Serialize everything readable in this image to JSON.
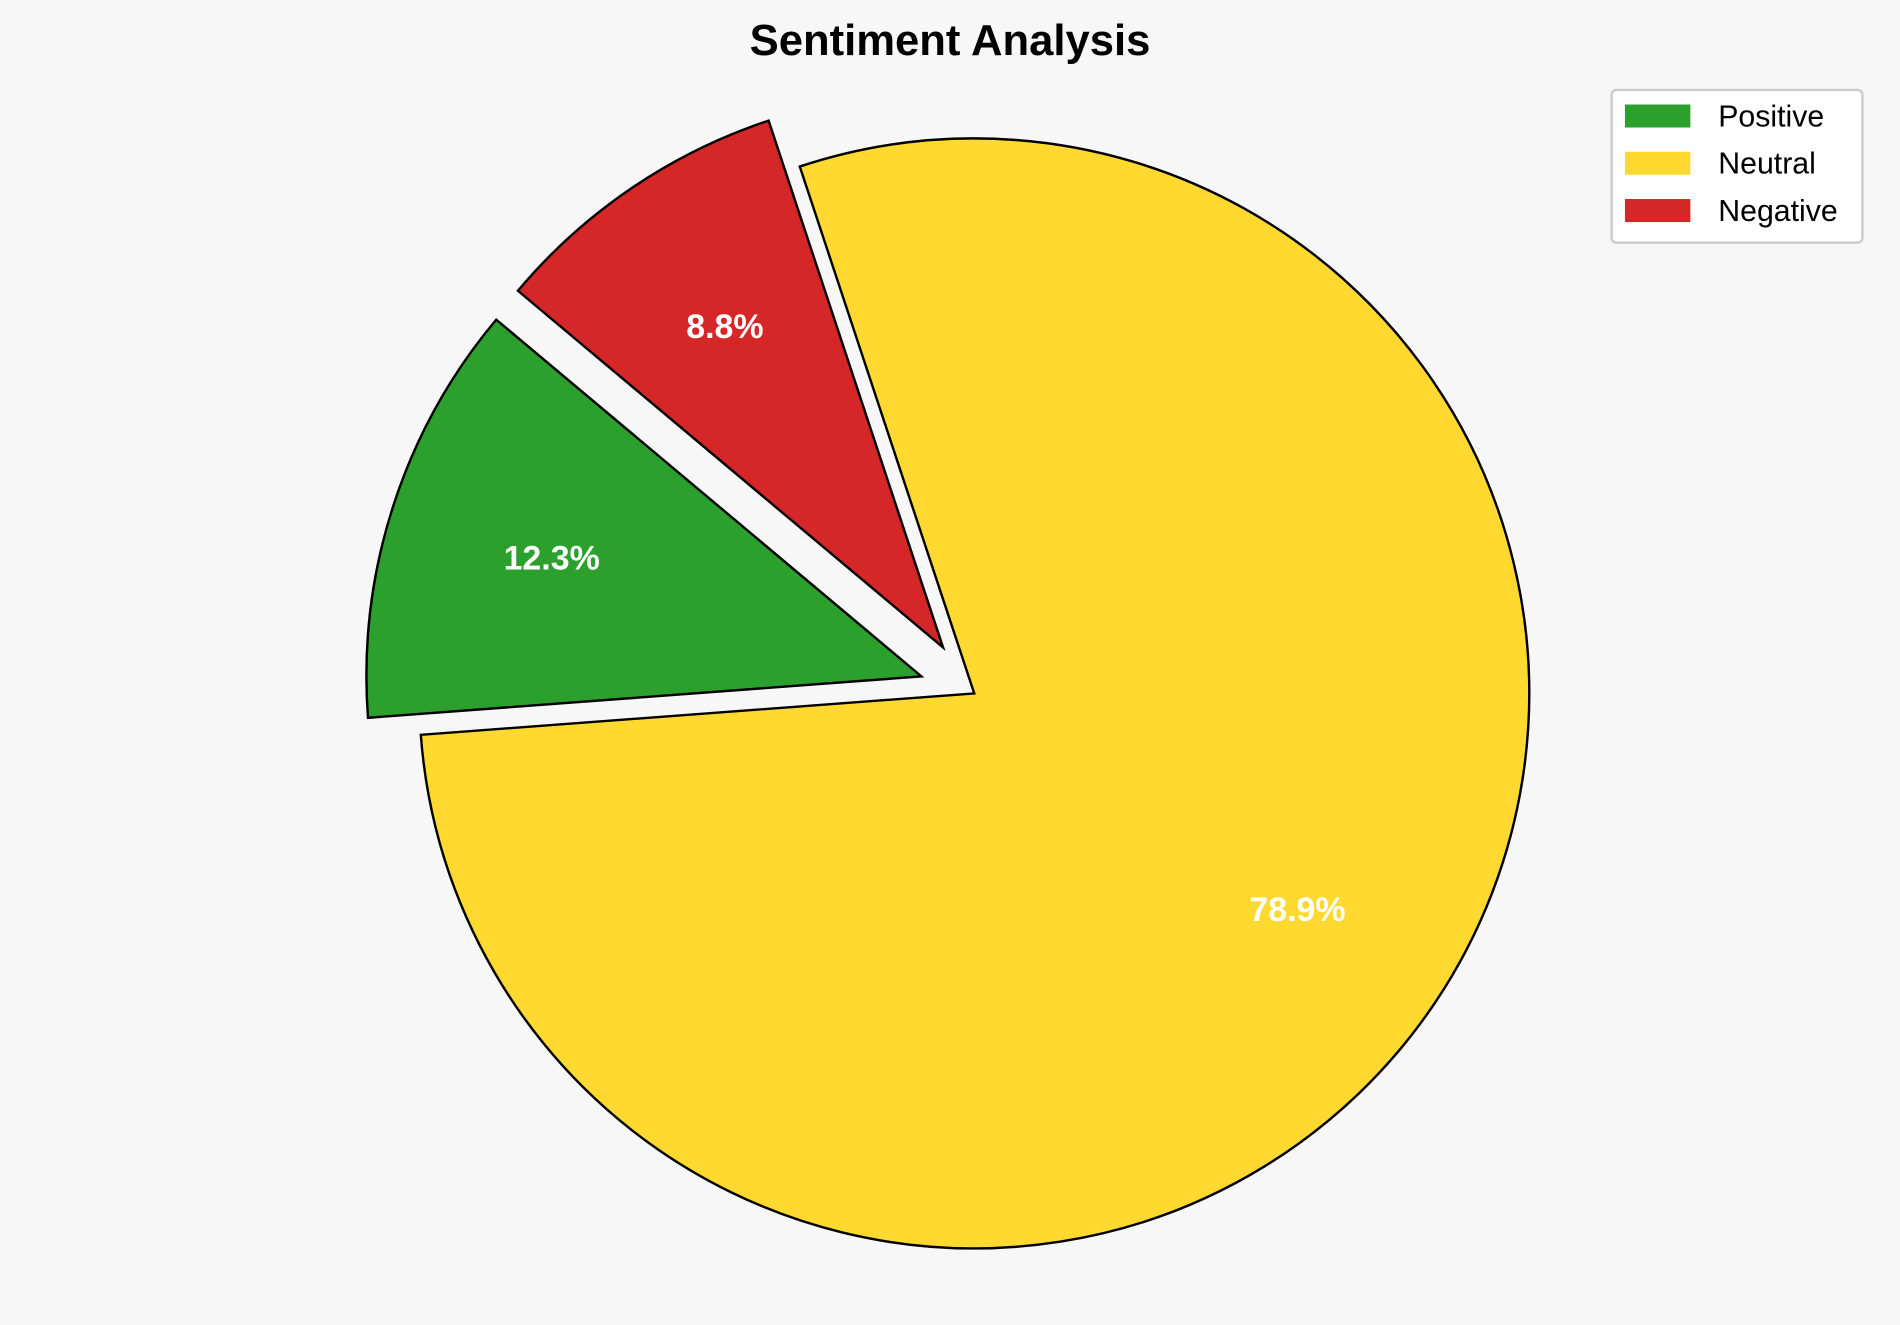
{
  "chart_data": {
    "type": "pie",
    "title": "Sentiment Analysis",
    "categories": [
      "Positive",
      "Neutral",
      "Negative"
    ],
    "values": [
      12.3,
      78.9,
      8.8
    ],
    "labels": [
      "12.3%",
      "78.9%",
      "8.8%"
    ],
    "colors": [
      "#2ca02c",
      "#ffd92f",
      "#d62728"
    ],
    "explode": [
      0.1,
      0,
      0.1
    ],
    "start_angle": 140,
    "legend_position": "top-right",
    "background": "#f7f7f7"
  }
}
